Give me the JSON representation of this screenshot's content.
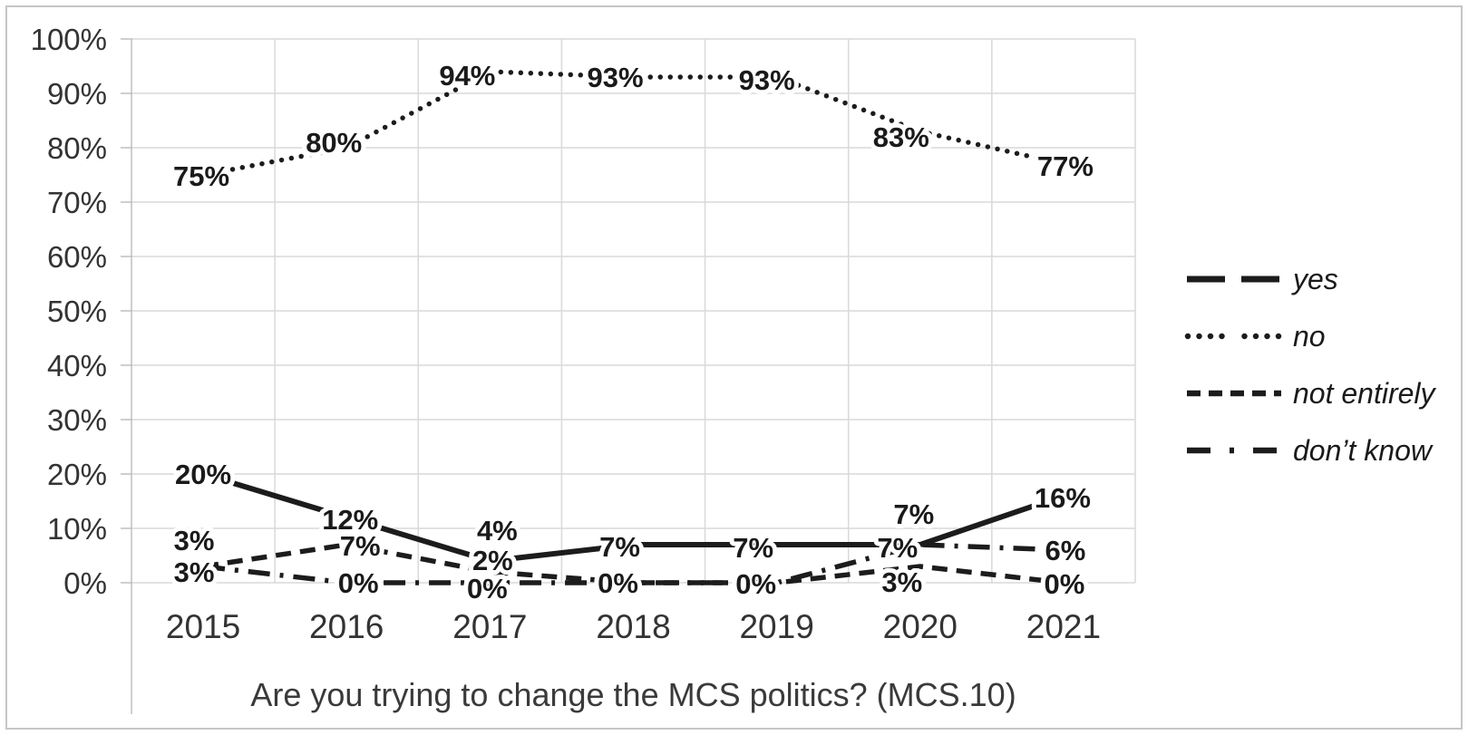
{
  "chart_data": {
    "type": "line",
    "title": "Are you trying to change the MCS politics? (MCS.10)",
    "categories": [
      "2015",
      "2016",
      "2017",
      "2018",
      "2019",
      "2020",
      "2021"
    ],
    "series": [
      {
        "name": "yes",
        "dash": "solid",
        "values": [
          20,
          12,
          4,
          7,
          7,
          7,
          16
        ],
        "labels": [
          "20%",
          "12%",
          "4%",
          "7%",
          "7%",
          "7%",
          "16%"
        ]
      },
      {
        "name": "no",
        "dash": "dotted",
        "values": [
          75,
          80,
          94,
          93,
          93,
          83,
          77
        ],
        "labels": [
          "75%",
          "80%",
          "94%",
          "93%",
          "93%",
          "83%",
          "77%"
        ]
      },
      {
        "name": "not entirely",
        "dash": "dashed",
        "values": [
          3,
          7,
          2,
          0,
          0,
          3,
          0
        ],
        "labels": [
          "3%",
          "7%",
          "2%",
          "0%",
          "0%",
          "3%",
          "0%"
        ]
      },
      {
        "name": "don’t know",
        "dash": "dash-dot",
        "values": [
          3,
          0,
          0,
          0,
          0,
          7,
          6
        ],
        "labels": [
          "3%",
          "0%",
          "0%",
          null,
          null,
          "7%",
          "6%"
        ]
      }
    ],
    "xlabel": "",
    "ylabel": "",
    "ylim": [
      0,
      100
    ],
    "y_tick_step": 10,
    "y_tick_labels": [
      "0%",
      "10%",
      "20%",
      "30%",
      "40%",
      "50%",
      "60%",
      "70%",
      "80%",
      "90%",
      "100%"
    ],
    "grid": true,
    "legend_position": "right",
    "label_format": "percent",
    "colors": {
      "series": "#1c1c1c",
      "grid": "#d9d9d9",
      "axis": "#bfbfbf",
      "tick_text": "#333333",
      "title_text": "#3a3a3a",
      "label_text": "#1a1a1a",
      "frame_border": "#c6c6c6"
    }
  }
}
